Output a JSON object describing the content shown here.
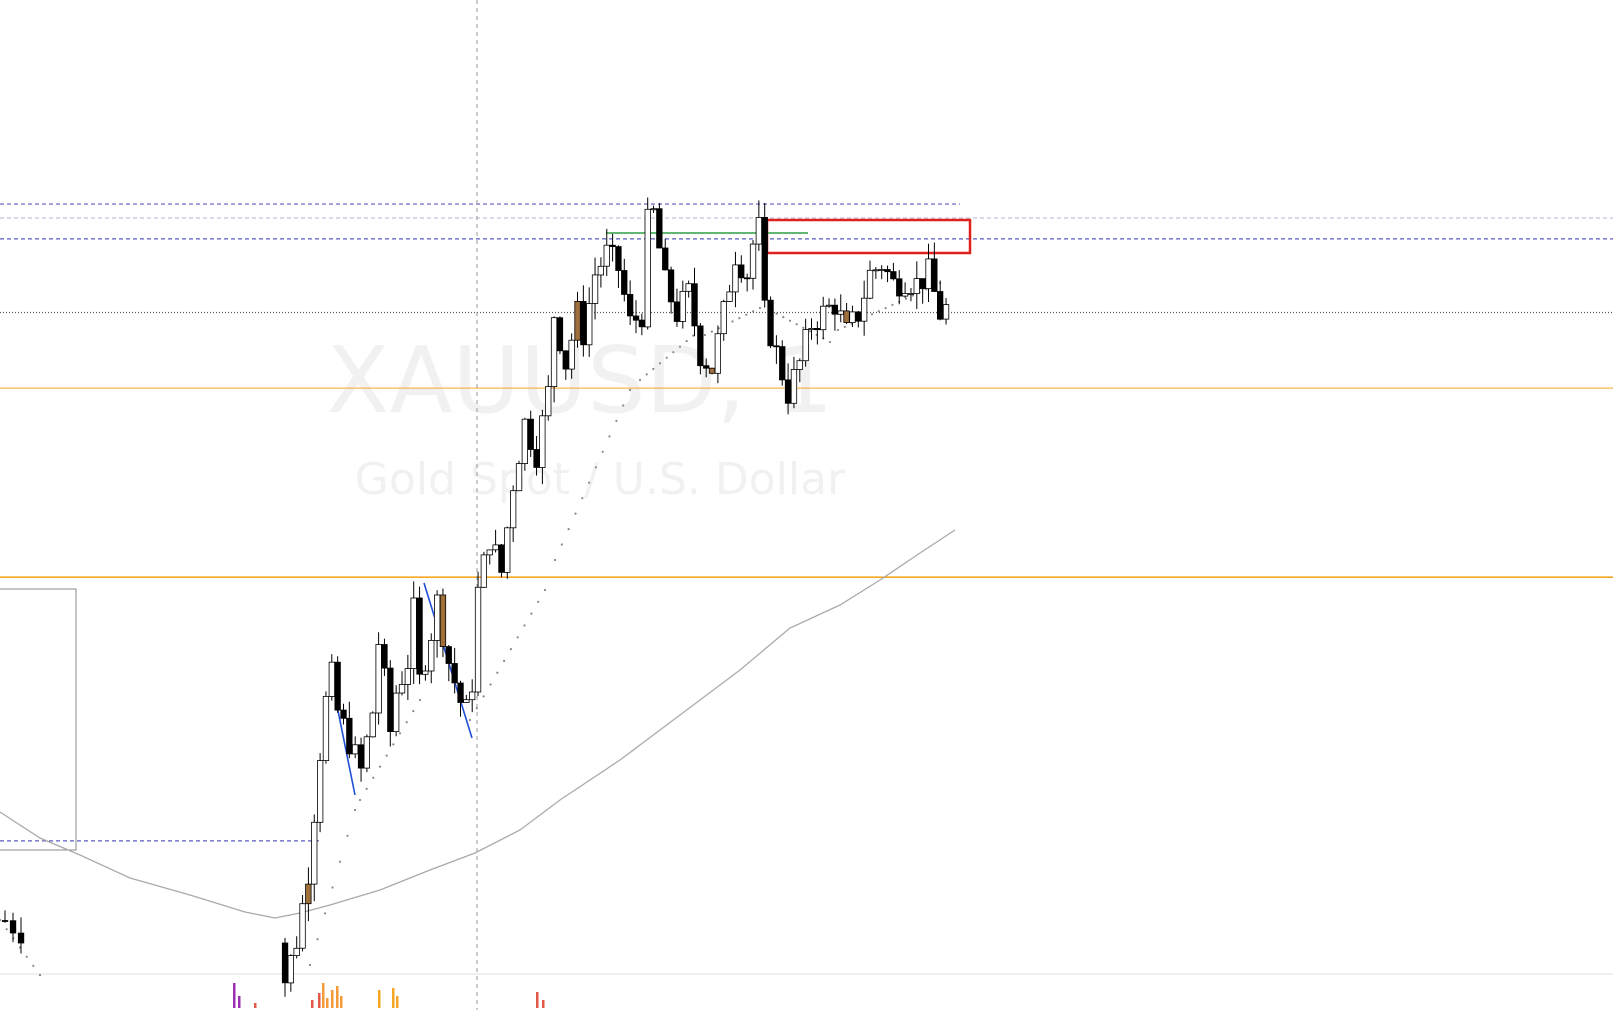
{
  "watermark": {
    "symbol": "XAUUSD, 1",
    "description": "Gold Spot / U.S. Dollar"
  },
  "colors": {
    "background": "#ffffff",
    "bull_candle": "#ffffff",
    "bear_candle": "#000000",
    "candle_outline": "#000000",
    "highlight_candle": "#a0703a",
    "moving_average": "#aaaaaa",
    "psar_dots": "#888888",
    "support_line": "#f5a623",
    "resistance_dashed": "#5b5bbf",
    "current_price_line": "#555555",
    "swing_line": "#1f4fd6",
    "top_level_line": "#2ea043",
    "highlight_box": "#e0201b",
    "range_box": "#888888",
    "crosshair": "#999999"
  },
  "chart_data": {
    "type": "candlestick",
    "title": "",
    "symbol": "XAUUSD",
    "timeframe": "1",
    "description": "Gold Spot / U.S. Dollar",
    "ylim": [
      0,
      1000
    ],
    "xlim": [
      0,
      160
    ],
    "candles": [],
    "moving_average": [
      [
        0,
        180
      ],
      [
        12,
        165
      ],
      [
        22,
        150
      ],
      [
        30,
        140
      ],
      [
        40,
        130
      ],
      [
        47,
        127
      ],
      [
        55,
        135
      ],
      [
        65,
        150
      ],
      [
        75,
        170
      ],
      [
        88,
        215
      ],
      [
        100,
        265
      ],
      [
        112,
        330
      ],
      [
        125,
        390
      ],
      [
        135,
        420
      ],
      [
        145,
        445
      ],
      [
        152,
        465
      ],
      [
        158,
        480
      ]
    ],
    "psar": [],
    "horizontal_levels": [
      {
        "style": "solid",
        "color": "orange",
        "price": 625
      },
      {
        "style": "solid",
        "color": "orange",
        "price": 435
      },
      {
        "style": "dotted",
        "color": "gray",
        "price": 701
      },
      {
        "style": "dashed",
        "color": "blue",
        "price": 810
      },
      {
        "style": "dashed",
        "color": "blue",
        "price": 775
      },
      {
        "style": "dashed",
        "color": "blue",
        "price": 170
      }
    ],
    "volume_ticks": [],
    "grid": false,
    "legend": "none"
  }
}
